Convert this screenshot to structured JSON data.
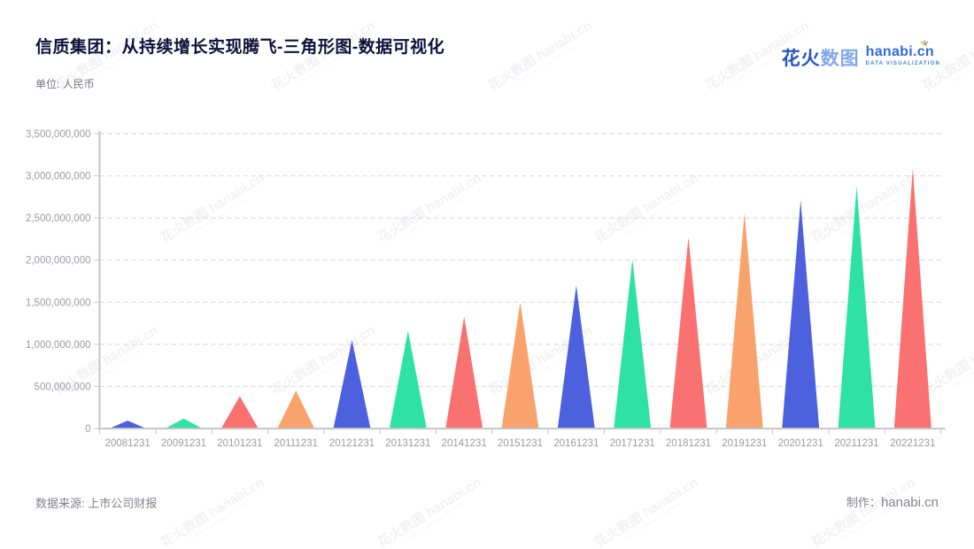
{
  "header": {
    "title": "信质集团：从持续增长实现腾飞-三角形图-数据可视化",
    "subtitle": "单位: 人民币",
    "logo": {
      "brand_cn_primary": "花火",
      "brand_cn_secondary": "数图",
      "brand_en": "hanabi.cn",
      "brand_tagline": "DATA VISUALIZATION"
    }
  },
  "footer": {
    "source": "数据来源: 上市公司财报",
    "maker_label": "制作：",
    "maker_site": "hanabi.cn"
  },
  "watermark": {
    "text": "花火数图 hanabi.cn",
    "tagline": "DATA VISUALIZATION"
  },
  "chart_data": {
    "type": "bar",
    "mark_shape": "triangle",
    "title": "信质集团：从持续增长实现腾飞-三角形图-数据可视化",
    "unit": "人民币",
    "xlabel": "",
    "ylabel": "",
    "categories": [
      "20081231",
      "20091231",
      "20101231",
      "20111231",
      "20121231",
      "20131231",
      "20141231",
      "20151231",
      "20161231",
      "20171231",
      "20181231",
      "20191231",
      "20201231",
      "20211231",
      "20221231"
    ],
    "values": [
      95000000,
      120000000,
      385000000,
      450000000,
      1050000000,
      1160000000,
      1330000000,
      1500000000,
      1700000000,
      2010000000,
      2270000000,
      2560000000,
      2710000000,
      2880000000,
      3090000000
    ],
    "ylim": [
      0,
      3500000000
    ],
    "ytick_step": 500000000,
    "ytick_labels": [
      "0",
      "500,000,000",
      "1,000,000,000",
      "1,500,000,000",
      "2,000,000,000",
      "2,500,000,000",
      "3,000,000,000",
      "3,500,000,000"
    ],
    "palette": [
      "#4d61de",
      "#2ee2a6",
      "#fa7171",
      "#faa26b"
    ],
    "grid": "horizontal-dashed",
    "legend_position": "none",
    "colors": {
      "grid_line": "#dcdcdc",
      "axis_line": "#c6c6c6",
      "tick_label": "#9a9aa2"
    }
  }
}
